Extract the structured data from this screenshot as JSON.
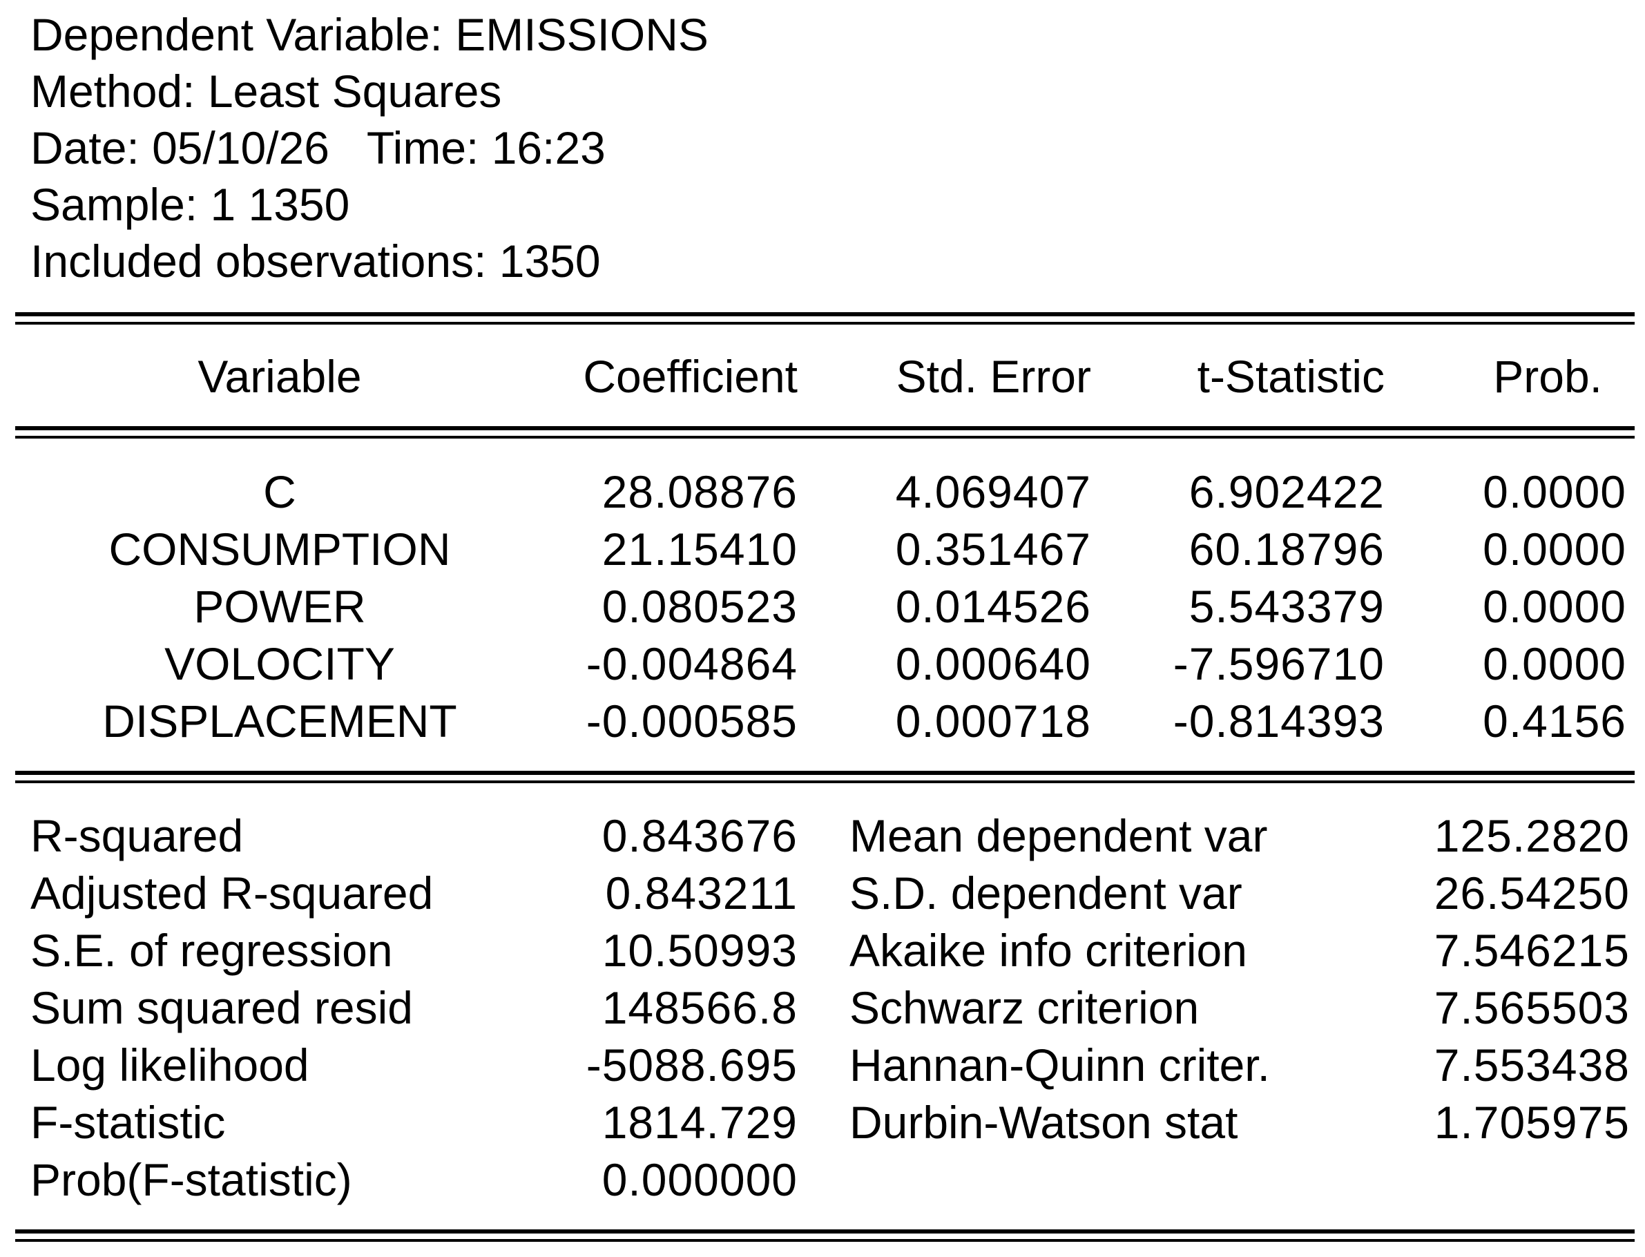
{
  "header": {
    "dependent_variable": "Dependent Variable: EMISSIONS",
    "method": "Method: Least Squares",
    "date_time": "Date: 05/10/26   Time: 16:23",
    "sample": "Sample: 1 1350",
    "included_observations": "Included observations: 1350"
  },
  "columns": {
    "variable": "Variable",
    "coefficient": "Coefficient",
    "std_error": "Std. Error",
    "t_statistic": "t-Statistic",
    "prob": "Prob."
  },
  "coefficients": [
    {
      "variable": "C",
      "coefficient": "28.08876",
      "std_error": "4.069407",
      "t_statistic": "6.902422",
      "prob": "0.0000"
    },
    {
      "variable": "CONSUMPTION",
      "coefficient": "21.15410",
      "std_error": "0.351467",
      "t_statistic": "60.18796",
      "prob": "0.0000"
    },
    {
      "variable": "POWER",
      "coefficient": "0.080523",
      "std_error": "0.014526",
      "t_statistic": "5.543379",
      "prob": "0.0000"
    },
    {
      "variable": "VOLOCITY",
      "coefficient": "-0.004864",
      "std_error": "0.000640",
      "t_statistic": "-7.596710",
      "prob": "0.0000"
    },
    {
      "variable": "DISPLACEMENT",
      "coefficient": "-0.000585",
      "std_error": "0.000718",
      "t_statistic": "-0.814393",
      "prob": "0.4156"
    }
  ],
  "stats_left": [
    {
      "label": "R-squared",
      "value": "0.843676"
    },
    {
      "label": "Adjusted R-squared",
      "value": "0.843211"
    },
    {
      "label": "S.E. of regression",
      "value": "10.50993"
    },
    {
      "label": "Sum squared resid",
      "value": "148566.8"
    },
    {
      "label": "Log likelihood",
      "value": "-5088.695"
    },
    {
      "label": "F-statistic",
      "value": "1814.729"
    },
    {
      "label": "Prob(F-statistic)",
      "value": "0.000000"
    }
  ],
  "stats_right": [
    {
      "label": "Mean dependent var",
      "value": "125.2820"
    },
    {
      "label": "S.D. dependent var",
      "value": "26.54250"
    },
    {
      "label": "Akaike info criterion",
      "value": "7.546215"
    },
    {
      "label": "Schwarz criterion",
      "value": "7.565503"
    },
    {
      "label": "Hannan-Quinn criter.",
      "value": "7.553438"
    },
    {
      "label": "Durbin-Watson stat",
      "value": "1.705975"
    }
  ]
}
